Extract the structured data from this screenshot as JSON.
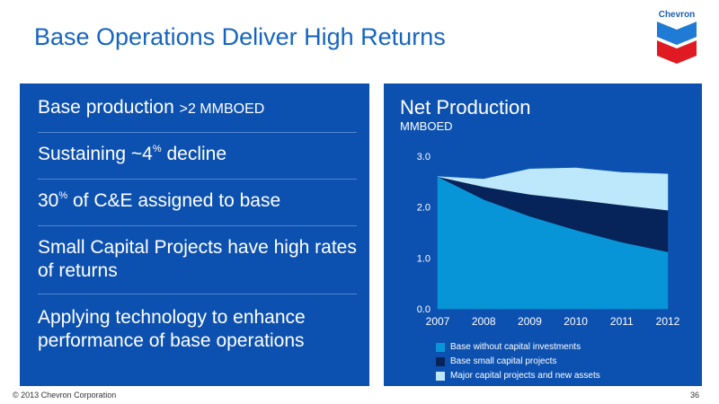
{
  "slide": {
    "title": "Base Operations Deliver High Returns",
    "logo_text": "Chevron",
    "footer_copyright": "© 2013 Chevron Corporation",
    "page_number": "36"
  },
  "bullets": [
    {
      "pre": "Base production ",
      "small": ">2 MMBOED"
    },
    {
      "pre": "Sustaining ~4",
      "sup": "%",
      "post": " decline"
    },
    {
      "pre": "30",
      "sup": "%",
      "post": " of C&E assigned to base"
    },
    {
      "pre": "Small Capital Projects have high rates of returns"
    },
    {
      "pre": "Applying technology to enhance performance of base operations"
    }
  ],
  "colors": {
    "panel": "#0d51b0",
    "series_base": "#0895d8",
    "series_small": "#07245a",
    "series_major": "#bde7fa"
  },
  "chart_data": {
    "type": "area",
    "stacked": true,
    "title": "Net Production",
    "ylabel": "MMBOED",
    "x": [
      "2007",
      "2008",
      "2009",
      "2010",
      "2011",
      "2012"
    ],
    "ylim": [
      0,
      3
    ],
    "yticks": [
      "0.0",
      "1.0",
      "2.0",
      "3.0"
    ],
    "grid": false,
    "legend_position": "bottom",
    "series": [
      {
        "name": "Base without capital investments",
        "values": [
          2.6,
          2.15,
          1.82,
          1.55,
          1.31,
          1.12
        ],
        "color": "#0895d8"
      },
      {
        "name": "Base small capital projects",
        "values": [
          0.0,
          0.25,
          0.43,
          0.6,
          0.73,
          0.82
        ],
        "color": "#07245a"
      },
      {
        "name": "Major capital projects and new assets",
        "values": [
          0.0,
          0.15,
          0.5,
          0.62,
          0.64,
          0.71
        ],
        "color": "#bde7fa"
      }
    ]
  }
}
